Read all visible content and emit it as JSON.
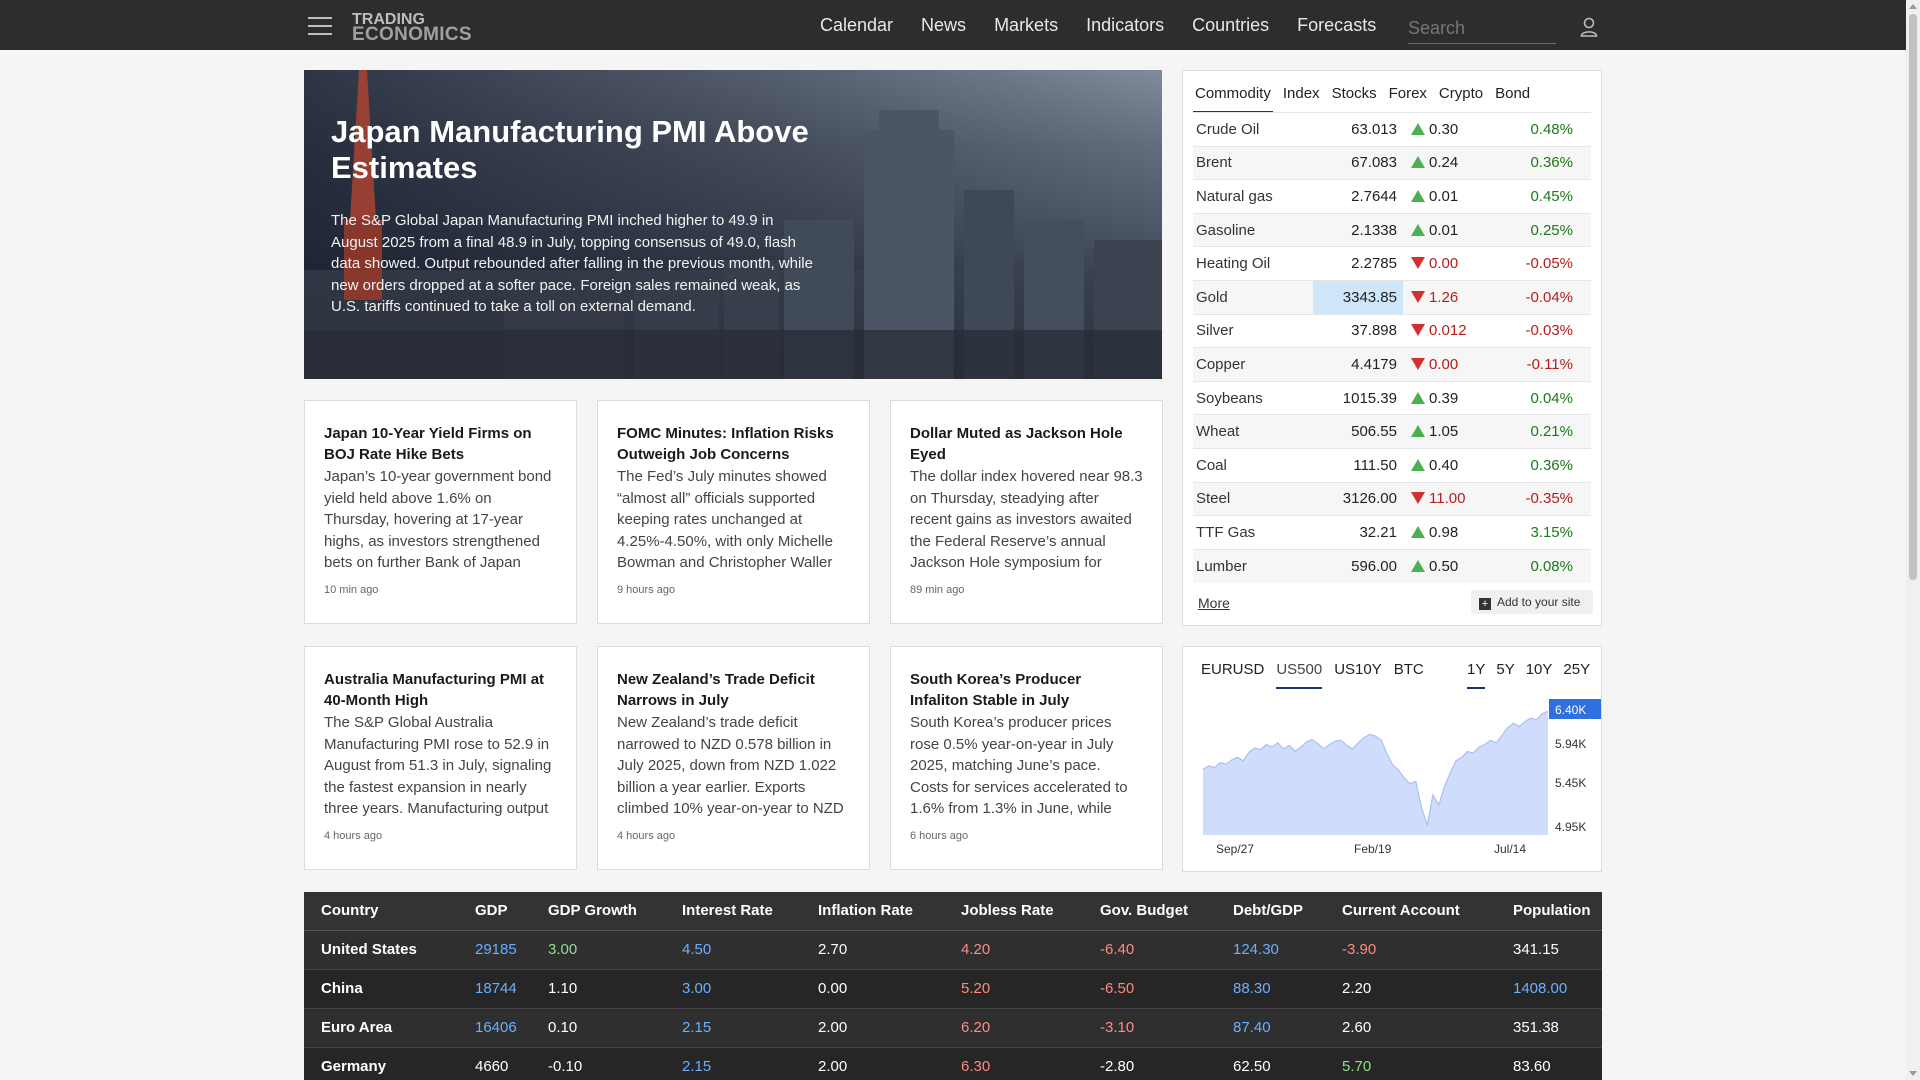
{
  "header": {
    "logo_line1": "TRADING",
    "logo_line2": "ECONOMICS",
    "nav": [
      "Calendar",
      "News",
      "Markets",
      "Indicators",
      "Countries",
      "Forecasts"
    ],
    "search_placeholder": "Search"
  },
  "hero": {
    "title": "Japan Manufacturing PMI Above Estimates",
    "body": "The S&P Global Japan Manufacturing PMI inched higher to 49.9 in August 2025 from a final 48.9 in July, topping consensus of 49.0, flash data showed. Output rebounded after falling in the previous month, while new orders dropped at a softer pace. Foreign sales remained weak, as U.S. tariffs continued to take a toll on external demand."
  },
  "news": [
    {
      "title": "Japan 10-Year Yield Firms on BOJ Rate Hike Bets",
      "body": "Japan’s 10-year government bond yield held above 1.6% on Thursday, hovering at 17-year highs, as investors strengthened bets on further Bank of Japan",
      "time": "10 min ago"
    },
    {
      "title": "FOMC Minutes: Inflation Risks Outweigh Job Concerns",
      "body": "The Fed’s July minutes showed “almost all” officials supported keeping rates unchanged at 4.25%-4.50%, with only Michelle Bowman and Christopher Waller",
      "time": "9 hours ago"
    },
    {
      "title": "Dollar Muted as Jackson Hole Eyed",
      "body": "The dollar index hovered near 98.3 on Thursday, steadying after recent gains as investors awaited the Federal Reserve’s annual Jackson Hole symposium for direction on",
      "time": "89 min ago"
    },
    {
      "title": "Australia Manufacturing PMI at 40-Month High",
      "body": "The S&P Global Australia Manufacturing PMI rose to 52.9 in August from 51.3 in July, signaling the fastest expansion in nearly three years. Manufacturing output",
      "time": "4 hours ago"
    },
    {
      "title": "New Zealand’s Trade Deficit Narrows in July",
      "body": "New Zealand’s trade deficit narrowed to NZD 0.578 billion in July 2025, down from NZD 1.022 billion a year earlier. Exports climbed 10% year-on-year to NZD",
      "time": "4 hours ago"
    },
    {
      "title": "South Korea’s Producer Infaliton Stable in July",
      "body": "South Korea’s producer prices rose 0.5% year-on-year in July 2025, matching June’s pace. Costs for services accelerated to 1.6% from 1.3% in June, while manufacturing",
      "time": "6 hours ago"
    }
  ],
  "commodity": {
    "tabs": [
      "Commodity",
      "Index",
      "Stocks",
      "Forex",
      "Crypto",
      "Bond"
    ],
    "rows": [
      {
        "name": "Crude Oil",
        "price": "63.013",
        "dir": "up",
        "change": "0.30",
        "pct": "0.48%"
      },
      {
        "name": "Brent",
        "price": "67.083",
        "dir": "up",
        "change": "0.24",
        "pct": "0.36%"
      },
      {
        "name": "Natural gas",
        "price": "2.7644",
        "dir": "up",
        "change": "0.01",
        "pct": "0.45%"
      },
      {
        "name": "Gasoline",
        "price": "2.1338",
        "dir": "up",
        "change": "0.01",
        "pct": "0.25%"
      },
      {
        "name": "Heating Oil",
        "price": "2.2785",
        "dir": "down",
        "change": "0.00",
        "pct": "-0.05%"
      },
      {
        "name": "Gold",
        "price": "3343.85",
        "dir": "down",
        "change": "1.26",
        "pct": "-0.04%"
      },
      {
        "name": "Silver",
        "price": "37.898",
        "dir": "down",
        "change": "0.012",
        "pct": "-0.03%"
      },
      {
        "name": "Copper",
        "price": "4.4179",
        "dir": "down",
        "change": "0.00",
        "pct": "-0.11%"
      },
      {
        "name": "Soybeans",
        "price": "1015.39",
        "dir": "up",
        "change": "0.39",
        "pct": "0.04%"
      },
      {
        "name": "Wheat",
        "price": "506.55",
        "dir": "up",
        "change": "1.05",
        "pct": "0.21%"
      },
      {
        "name": "Coal",
        "price": "111.50",
        "dir": "up",
        "change": "0.40",
        "pct": "0.36%"
      },
      {
        "name": "Steel",
        "price": "3126.00",
        "dir": "down",
        "change": "11.00",
        "pct": "-0.35%"
      },
      {
        "name": "TTF Gas",
        "price": "32.21",
        "dir": "up",
        "change": "0.98",
        "pct": "3.15%"
      },
      {
        "name": "Lumber",
        "price": "596.00",
        "dir": "up",
        "change": "0.50",
        "pct": "0.08%"
      }
    ],
    "more_label": "More",
    "add_label": "Add to your site"
  },
  "chart_panel": {
    "tickers": [
      "EURUSD",
      "US500",
      "US10Y",
      "BTC"
    ],
    "ranges": [
      "1Y",
      "5Y",
      "10Y",
      "25Y"
    ]
  },
  "chart_data": {
    "type": "area",
    "series_name": "US500",
    "x_ticks": [
      "Sep/27",
      "Feb/19",
      "Jul/14"
    ],
    "y_ticks": [
      "5.94K",
      "5.45K",
      "4.95K"
    ],
    "last_value": "6.40K",
    "ylim": [
      4.95,
      6.45
    ],
    "values": [
      5.72,
      5.76,
      5.74,
      5.8,
      5.78,
      5.83,
      5.86,
      5.82,
      5.92,
      5.97,
      5.95,
      6.01,
      5.98,
      6.03,
      5.96,
      6.0,
      5.93,
      5.98,
      6.04,
      6.07,
      6.02,
      5.96,
      6.01,
      6.05,
      6.06,
      6.0,
      5.96,
      6.03,
      6.09,
      6.13,
      6.11,
      6.06,
      5.9,
      5.77,
      5.71,
      5.62,
      5.55,
      5.58,
      5.27,
      5.07,
      5.42,
      5.3,
      5.52,
      5.68,
      5.82,
      5.86,
      5.93,
      5.91,
      5.98,
      6.01,
      6.06,
      6.03,
      6.12,
      6.21,
      6.26,
      6.22,
      6.28,
      6.32,
      6.3,
      6.37,
      6.4
    ]
  },
  "table": {
    "headers": [
      "Country",
      "GDP",
      "GDP Growth",
      "Interest Rate",
      "Inflation Rate",
      "Jobless Rate",
      "Gov. Budget",
      "Debt/GDP",
      "Current Account",
      "Population"
    ],
    "rows": [
      [
        "United States",
        "29185",
        "3.00",
        "4.50",
        "2.70",
        "4.20",
        "-6.40",
        "124.30",
        "-3.90",
        "341.15"
      ],
      [
        "China",
        "18744",
        "1.10",
        "3.00",
        "0.00",
        "5.20",
        "-6.50",
        "88.30",
        "2.20",
        "1408.00"
      ],
      [
        "Euro Area",
        "16406",
        "0.10",
        "2.15",
        "2.00",
        "6.20",
        "-3.10",
        "87.40",
        "2.60",
        "351.38"
      ],
      [
        "Germany",
        "4660",
        "-0.10",
        "2.15",
        "2.00",
        "6.30",
        "-2.80",
        "62.50",
        "5.70",
        "83.60"
      ]
    ],
    "colors": {
      "blue": "#6ab0ff",
      "green": "#8de08d",
      "red": "#ff8a80"
    }
  }
}
